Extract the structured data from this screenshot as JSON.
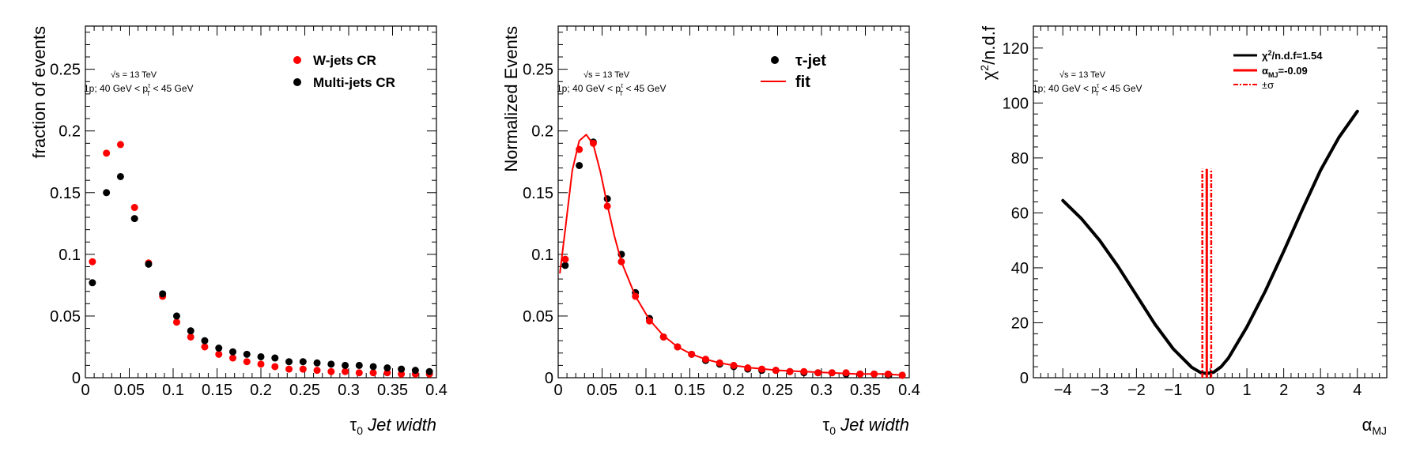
{
  "chart_data": [
    {
      "type": "scatter",
      "ylabel": "fraction of events",
      "xlabel_sym": "τ",
      "xlabel_sub": "0",
      "xlabel_text": "Jet width",
      "xlim": [
        0,
        0.4
      ],
      "ylim": [
        0,
        0.285
      ],
      "xticks": [
        0,
        0.05,
        0.1,
        0.15,
        0.2,
        0.25,
        0.3,
        0.35,
        0.4
      ],
      "xtick_labels": [
        "0",
        "0.05",
        "0.1",
        "0.15",
        "0.2",
        "0.25",
        "0.3",
        "0.35",
        "0.4"
      ],
      "yticks": [
        0,
        0.05,
        0.1,
        0.15,
        0.2,
        0.25
      ],
      "ytick_labels": [
        "0",
        "0.05",
        "0.1",
        "0.15",
        "0.2",
        "0.25"
      ],
      "annotation": {
        "energy": "√s = 13 TeV",
        "prongs": "1p; 40 GeV < ",
        "pt_sym": "p",
        "pt_sup": "τ",
        "pt_sub": "T",
        "pt_tail": " < 45 GeV"
      },
      "legend_position": "top-right",
      "series": [
        {
          "name": "W-jets CR",
          "color": "#ff0000",
          "x": [
            0.008,
            0.024,
            0.04,
            0.056,
            0.072,
            0.088,
            0.104,
            0.12,
            0.136,
            0.152,
            0.168,
            0.184,
            0.2,
            0.216,
            0.232,
            0.248,
            0.264,
            0.28,
            0.296,
            0.312,
            0.328,
            0.344,
            0.36,
            0.376,
            0.392
          ],
          "y": [
            0.094,
            0.182,
            0.189,
            0.138,
            0.093,
            0.066,
            0.045,
            0.033,
            0.025,
            0.019,
            0.016,
            0.013,
            0.011,
            0.009,
            0.007,
            0.007,
            0.006,
            0.005,
            0.005,
            0.004,
            0.004,
            0.004,
            0.003,
            0.003,
            0.003
          ]
        },
        {
          "name": "Multi-jets CR",
          "color": "#000000",
          "x": [
            0.008,
            0.024,
            0.04,
            0.056,
            0.072,
            0.088,
            0.104,
            0.12,
            0.136,
            0.152,
            0.168,
            0.184,
            0.2,
            0.216,
            0.232,
            0.248,
            0.264,
            0.28,
            0.296,
            0.312,
            0.328,
            0.344,
            0.36,
            0.376,
            0.392
          ],
          "y": [
            0.077,
            0.15,
            0.163,
            0.129,
            0.092,
            0.068,
            0.05,
            0.038,
            0.03,
            0.024,
            0.021,
            0.019,
            0.017,
            0.016,
            0.013,
            0.013,
            0.012,
            0.011,
            0.01,
            0.01,
            0.009,
            0.008,
            0.007,
            0.006,
            0.005
          ]
        }
      ]
    },
    {
      "type": "scatter",
      "ylabel": "Normalized Events",
      "xlabel_sym": "τ",
      "xlabel_sub": "0",
      "xlabel_text": "Jet width",
      "xlim": [
        0,
        0.4
      ],
      "ylim": [
        0,
        0.285
      ],
      "xticks": [
        0,
        0.05,
        0.1,
        0.15,
        0.2,
        0.25,
        0.3,
        0.35,
        0.4
      ],
      "xtick_labels": [
        "0",
        "0.05",
        "0.1",
        "0.15",
        "0.2",
        "0.25",
        "0.3",
        "0.35",
        "0.4"
      ],
      "yticks": [
        0,
        0.05,
        0.1,
        0.15,
        0.2,
        0.25
      ],
      "ytick_labels": [
        "0",
        "0.05",
        "0.1",
        "0.15",
        "0.2",
        "0.25"
      ],
      "annotation": {
        "energy": "√s = 13 TeV",
        "prongs": "1p; 40 GeV < ",
        "pt_sym": "p",
        "pt_sup": "τ",
        "pt_sub": "T",
        "pt_tail": " < 45 GeV"
      },
      "legend_position": "top-right",
      "series": [
        {
          "name": "τ-jet",
          "color": "#000000",
          "x": [
            0.008,
            0.024,
            0.04,
            0.056,
            0.072,
            0.088,
            0.104,
            0.12,
            0.136,
            0.152,
            0.168,
            0.184,
            0.2,
            0.216,
            0.232,
            0.248,
            0.264,
            0.28,
            0.296,
            0.312,
            0.328,
            0.344,
            0.36,
            0.376,
            0.392
          ],
          "y": [
            0.091,
            0.172,
            0.191,
            0.145,
            0.1,
            0.069,
            0.048,
            0.033,
            0.025,
            0.019,
            0.014,
            0.011,
            0.009,
            0.007,
            0.006,
            0.006,
            0.005,
            0.004,
            0.004,
            0.004,
            0.003,
            0.003,
            0.003,
            0.002,
            0.002
          ]
        },
        {
          "name": "",
          "color": "#ff0000",
          "x": [
            0.008,
            0.024,
            0.04,
            0.056,
            0.072,
            0.088,
            0.104,
            0.12,
            0.136,
            0.152,
            0.168,
            0.184,
            0.2,
            0.216,
            0.232,
            0.248,
            0.264,
            0.28,
            0.296,
            0.312,
            0.328,
            0.344,
            0.36,
            0.376,
            0.392
          ],
          "y": [
            0.096,
            0.185,
            0.19,
            0.139,
            0.094,
            0.066,
            0.046,
            0.033,
            0.025,
            0.019,
            0.015,
            0.012,
            0.01,
            0.008,
            0.007,
            0.006,
            0.005,
            0.005,
            0.004,
            0.004,
            0.004,
            0.003,
            0.003,
            0.003,
            0.002
          ]
        },
        {
          "name": "fit",
          "color": "#ff0000",
          "style": "line",
          "x": [
            0.002,
            0.008,
            0.016,
            0.024,
            0.032,
            0.04,
            0.048,
            0.056,
            0.064,
            0.072,
            0.088,
            0.104,
            0.12,
            0.136,
            0.152,
            0.168,
            0.184,
            0.2,
            0.22,
            0.25,
            0.28,
            0.31,
            0.34,
            0.37,
            0.395
          ],
          "y": [
            0.085,
            0.12,
            0.168,
            0.192,
            0.197,
            0.189,
            0.167,
            0.14,
            0.115,
            0.094,
            0.066,
            0.047,
            0.034,
            0.025,
            0.019,
            0.015,
            0.012,
            0.01,
            0.008,
            0.006,
            0.005,
            0.004,
            0.003,
            0.003,
            0.002
          ]
        }
      ]
    },
    {
      "type": "line",
      "ylabel_main": "χ",
      "ylabel_sup": "2",
      "ylabel_rest": "/n.d.f",
      "xlabel_sym": "α",
      "xlabel_sub": "MJ",
      "xlim": [
        -4.8,
        4.8
      ],
      "ylim": [
        0,
        128
      ],
      "xticks": [
        -4,
        -3,
        -2,
        -1,
        0,
        1,
        2,
        3,
        4
      ],
      "xtick_labels": [
        "−4",
        "−3",
        "−2",
        "−1",
        "0",
        "1",
        "2",
        "3",
        "4"
      ],
      "yticks": [
        0,
        20,
        40,
        60,
        80,
        100,
        120
      ],
      "ytick_labels": [
        "0",
        "20",
        "40",
        "60",
        "80",
        "100",
        "120"
      ],
      "annotation": {
        "energy": "√s = 13 TeV",
        "prongs": "1p; 40 GeV < ",
        "pt_sym": "p",
        "pt_sup": "τ",
        "pt_sub": "T",
        "pt_tail": " < 45 GeV"
      },
      "legend_position": "top-right",
      "legend": [
        {
          "main": "χ",
          "sup": "2",
          "rest": "/n.d.f=1.54",
          "color": "#000000",
          "style": "solid"
        },
        {
          "main": "α",
          "sub": "MJ",
          "rest": "=-0.09",
          "color": "#ff0000",
          "style": "solid"
        },
        {
          "main": "±σ",
          "color": "#ff0000",
          "style": "dashdot"
        }
      ],
      "series": [
        {
          "name": "χ2/n.d.f",
          "color": "#000000",
          "x": [
            -4,
            -3.5,
            -3,
            -2.5,
            -2,
            -1.5,
            -1,
            -0.5,
            -0.25,
            -0.09,
            0.1,
            0.3,
            0.5,
            1,
            1.5,
            2,
            2.5,
            3,
            3.5,
            4
          ],
          "y": [
            64.5,
            58,
            50,
            40.5,
            30,
            19.5,
            10.5,
            3.8,
            1.8,
            1.54,
            2,
            4,
            7.2,
            18.5,
            31.5,
            46,
            61,
            75.5,
            87.5,
            97
          ]
        }
      ],
      "vlines": [
        {
          "x": -0.09,
          "ymax": 76,
          "color": "#ff0000",
          "style": "solid"
        },
        {
          "x": -0.21,
          "ymax": 76,
          "color": "#ff0000",
          "style": "dashdot"
        },
        {
          "x": 0.03,
          "ymax": 76,
          "color": "#ff0000",
          "style": "dashdot"
        }
      ]
    }
  ]
}
